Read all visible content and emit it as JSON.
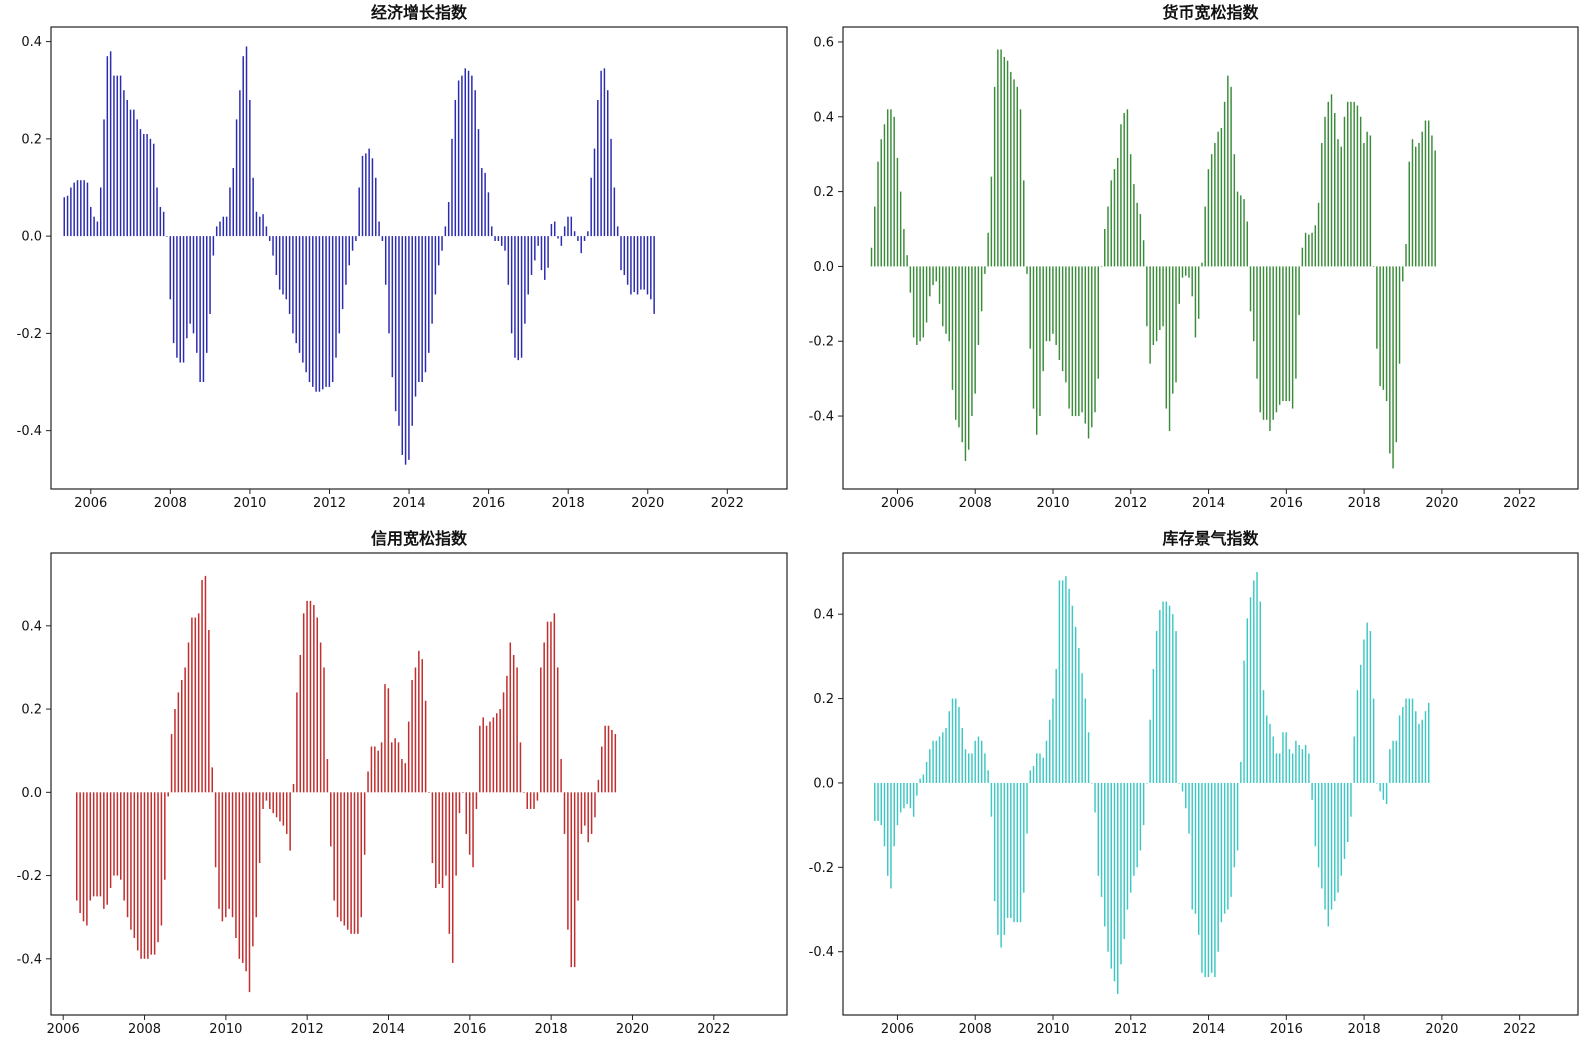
{
  "chart_data": [
    {
      "type": "bar",
      "title": "经济增长指数",
      "color": "#2c2cb0",
      "xlim": [
        2005.0,
        2023.5
      ],
      "ylim": [
        -0.52,
        0.43
      ],
      "xticks": [
        "2006",
        "2008",
        "2010",
        "2012",
        "2014",
        "2016",
        "2018",
        "2020",
        "2022"
      ],
      "yticks": [
        "0.4",
        "0.2",
        "0.0",
        "-0.2",
        "-0.4"
      ],
      "x_start": 2005.333,
      "x_step": 0.0833,
      "values": [
        0.08,
        0.083,
        0.1,
        0.11,
        0.115,
        0.115,
        0.115,
        0.11,
        0.06,
        0.04,
        0.03,
        0.1,
        0.24,
        0.37,
        0.38,
        0.33,
        0.33,
        0.33,
        0.3,
        0.28,
        0.26,
        0.26,
        0.24,
        0.22,
        0.21,
        0.21,
        0.2,
        0.19,
        0.1,
        0.06,
        0.05,
        0.0,
        -0.13,
        -0.22,
        -0.25,
        -0.26,
        -0.26,
        -0.21,
        -0.18,
        -0.2,
        -0.24,
        -0.3,
        -0.3,
        -0.24,
        -0.16,
        -0.04,
        0.02,
        0.03,
        0.04,
        0.04,
        0.1,
        0.14,
        0.24,
        0.3,
        0.37,
        0.39,
        0.28,
        0.12,
        0.05,
        0.04,
        0.045,
        0.02,
        -0.01,
        -0.04,
        -0.08,
        -0.11,
        -0.12,
        -0.13,
        -0.16,
        -0.2,
        -0.22,
        -0.24,
        -0.26,
        -0.28,
        -0.3,
        -0.31,
        -0.32,
        -0.32,
        -0.315,
        -0.31,
        -0.31,
        -0.3,
        -0.25,
        -0.2,
        -0.15,
        -0.1,
        -0.06,
        -0.03,
        -0.01,
        0.1,
        0.165,
        0.17,
        0.18,
        0.16,
        0.12,
        0.03,
        -0.01,
        -0.1,
        -0.2,
        -0.29,
        -0.36,
        -0.39,
        -0.45,
        -0.47,
        -0.46,
        -0.39,
        -0.33,
        -0.3,
        -0.3,
        -0.28,
        -0.24,
        -0.18,
        -0.12,
        -0.06,
        -0.03,
        0.02,
        0.07,
        0.2,
        0.28,
        0.32,
        0.33,
        0.345,
        0.34,
        0.33,
        0.3,
        0.22,
        0.14,
        0.13,
        0.09,
        0.02,
        -0.01,
        -0.01,
        -0.02,
        -0.03,
        -0.1,
        -0.2,
        -0.25,
        -0.255,
        -0.25,
        -0.18,
        -0.12,
        -0.08,
        -0.05,
        -0.02,
        -0.07,
        -0.09,
        -0.065,
        0.025,
        0.03,
        -0.005,
        -0.02,
        0.02,
        0.04,
        0.04,
        0.01,
        -0.01,
        -0.035,
        -0.01,
        0.01,
        0.12,
        0.18,
        0.28,
        0.34,
        0.345,
        0.3,
        0.2,
        0.1,
        0.02,
        -0.07,
        -0.08,
        -0.1,
        -0.12,
        -0.115,
        -0.12,
        -0.11,
        -0.11,
        -0.12,
        -0.13,
        -0.16
      ]
    },
    {
      "type": "bar",
      "title": "货币宽松指数",
      "color": "#3a8c3a",
      "xlim": [
        2004.6,
        2023.5
      ],
      "ylim": [
        -0.595,
        0.64
      ],
      "xticks": [
        "2006",
        "2008",
        "2010",
        "2012",
        "2014",
        "2016",
        "2018",
        "2020",
        "2022"
      ],
      "yticks": [
        "0.6",
        "0.4",
        "0.2",
        "0.0",
        "-0.2",
        "-0.4"
      ],
      "x_start": 2005.333,
      "x_step": 0.0833,
      "values": [
        0.05,
        0.16,
        0.28,
        0.34,
        0.38,
        0.42,
        0.42,
        0.4,
        0.29,
        0.2,
        0.1,
        0.03,
        -0.07,
        -0.19,
        -0.21,
        -0.2,
        -0.19,
        -0.15,
        -0.08,
        -0.05,
        -0.04,
        -0.1,
        -0.16,
        -0.18,
        -0.2,
        -0.33,
        -0.41,
        -0.43,
        -0.47,
        -0.52,
        -0.49,
        -0.4,
        -0.34,
        -0.21,
        -0.12,
        -0.02,
        0.09,
        0.24,
        0.48,
        0.58,
        0.58,
        0.56,
        0.55,
        0.52,
        0.5,
        0.48,
        0.42,
        0.23,
        -0.02,
        -0.22,
        -0.38,
        -0.45,
        -0.4,
        -0.28,
        -0.2,
        -0.2,
        -0.18,
        -0.21,
        -0.25,
        -0.28,
        -0.31,
        -0.38,
        -0.4,
        -0.4,
        -0.4,
        -0.39,
        -0.42,
        -0.46,
        -0.43,
        -0.39,
        -0.3,
        0.0,
        0.1,
        0.16,
        0.23,
        0.26,
        0.29,
        0.38,
        0.41,
        0.42,
        0.3,
        0.22,
        0.17,
        0.14,
        0.07,
        -0.16,
        -0.26,
        -0.21,
        -0.2,
        -0.17,
        -0.16,
        -0.38,
        -0.44,
        -0.34,
        -0.31,
        -0.1,
        -0.03,
        -0.025,
        -0.03,
        -0.08,
        -0.19,
        -0.14,
        0.01,
        0.16,
        0.26,
        0.3,
        0.33,
        0.36,
        0.37,
        0.44,
        0.51,
        0.48,
        0.3,
        0.2,
        0.19,
        0.18,
        0.12,
        -0.12,
        -0.2,
        -0.3,
        -0.39,
        -0.41,
        -0.41,
        -0.44,
        -0.41,
        -0.39,
        -0.37,
        -0.36,
        -0.36,
        -0.36,
        -0.38,
        -0.3,
        -0.13,
        0.05,
        0.09,
        0.085,
        0.09,
        0.11,
        0.17,
        0.33,
        0.4,
        0.44,
        0.46,
        0.41,
        0.34,
        0.32,
        0.4,
        0.44,
        0.44,
        0.44,
        0.43,
        0.4,
        0.33,
        0.36,
        0.35,
        0.0,
        -0.22,
        -0.32,
        -0.33,
        -0.36,
        -0.5,
        -0.54,
        -0.47,
        -0.26,
        -0.04,
        0.06,
        0.28,
        0.34,
        0.32,
        0.33,
        0.36,
        0.39,
        0.39,
        0.35,
        0.31
      ]
    },
    {
      "type": "bar",
      "title": "信用宽松指数",
      "color": "#c03030",
      "xlim": [
        2005.7,
        2023.8
      ],
      "ylim": [
        -0.535,
        0.575
      ],
      "xticks": [
        "2006",
        "2008",
        "2010",
        "2012",
        "2014",
        "2016",
        "2018",
        "2020",
        "2022"
      ],
      "yticks": [
        "0.4",
        "0.2",
        "0.0",
        "-0.2",
        "-0.4"
      ],
      "x_start": 2006.333,
      "x_step": 0.0833,
      "values": [
        -0.26,
        -0.29,
        -0.31,
        -0.32,
        -0.26,
        -0.25,
        -0.25,
        -0.25,
        -0.28,
        -0.27,
        -0.23,
        -0.2,
        -0.2,
        -0.21,
        -0.26,
        -0.3,
        -0.33,
        -0.35,
        -0.38,
        -0.4,
        -0.4,
        -0.4,
        -0.39,
        -0.39,
        -0.36,
        -0.32,
        -0.21,
        -0.01,
        0.14,
        0.2,
        0.24,
        0.27,
        0.3,
        0.36,
        0.42,
        0.42,
        0.43,
        0.51,
        0.52,
        0.39,
        0.06,
        -0.18,
        -0.28,
        -0.31,
        -0.3,
        -0.28,
        -0.3,
        -0.35,
        -0.4,
        -0.41,
        -0.43,
        -0.48,
        -0.37,
        -0.3,
        -0.17,
        -0.04,
        -0.02,
        -0.04,
        -0.05,
        -0.06,
        -0.07,
        -0.08,
        -0.1,
        -0.14,
        0.02,
        0.24,
        0.33,
        0.43,
        0.46,
        0.46,
        0.45,
        0.42,
        0.36,
        0.3,
        0.08,
        -0.13,
        -0.26,
        -0.3,
        -0.31,
        -0.32,
        -0.33,
        -0.34,
        -0.34,
        -0.34,
        -0.3,
        -0.15,
        0.05,
        0.11,
        0.11,
        0.1,
        0.12,
        0.26,
        0.25,
        0.12,
        0.13,
        0.12,
        0.08,
        0.07,
        0.17,
        0.27,
        0.3,
        0.34,
        0.32,
        0.22,
        0.0,
        -0.17,
        -0.23,
        -0.22,
        -0.23,
        -0.2,
        -0.34,
        -0.41,
        -0.2,
        -0.05,
        0.0,
        -0.1,
        -0.15,
        -0.18,
        -0.04,
        0.16,
        0.18,
        0.16,
        0.17,
        0.18,
        0.19,
        0.2,
        0.24,
        0.28,
        0.36,
        0.33,
        0.3,
        0.12,
        0.0,
        -0.04,
        -0.04,
        -0.04,
        -0.02,
        0.3,
        0.36,
        0.41,
        0.41,
        0.43,
        0.3,
        0.08,
        -0.1,
        -0.33,
        -0.42,
        -0.42,
        -0.26,
        -0.1,
        -0.08,
        -0.12,
        -0.1,
        -0.06,
        0.03,
        0.11,
        0.16,
        0.16,
        0.15,
        0.14
      ]
    },
    {
      "type": "bar",
      "title": "库存景气指数",
      "color": "#3ec8c4",
      "xlim": [
        2004.6,
        2023.5
      ],
      "ylim": [
        -0.55,
        0.545
      ],
      "xticks": [
        "2006",
        "2008",
        "2010",
        "2012",
        "2014",
        "2016",
        "2018",
        "2020",
        "2022"
      ],
      "yticks": [
        "0.4",
        "0.2",
        "0.0",
        "-0.2",
        "-0.4"
      ],
      "x_start": 2005.417,
      "x_step": 0.0833,
      "values": [
        -0.09,
        -0.09,
        -0.1,
        -0.15,
        -0.22,
        -0.25,
        -0.15,
        -0.1,
        -0.07,
        -0.06,
        -0.05,
        -0.06,
        -0.08,
        -0.03,
        0.01,
        0.02,
        0.05,
        0.08,
        0.1,
        0.1,
        0.11,
        0.12,
        0.13,
        0.17,
        0.2,
        0.2,
        0.18,
        0.13,
        0.08,
        0.07,
        0.07,
        0.1,
        0.11,
        0.1,
        0.07,
        0.03,
        -0.08,
        -0.28,
        -0.36,
        -0.39,
        -0.36,
        -0.32,
        -0.32,
        -0.33,
        -0.33,
        -0.33,
        -0.26,
        -0.12,
        0.03,
        0.04,
        0.07,
        0.07,
        0.06,
        0.1,
        0.15,
        0.2,
        0.27,
        0.48,
        0.48,
        0.49,
        0.46,
        0.42,
        0.37,
        0.32,
        0.26,
        0.2,
        0.12,
        0.0,
        -0.07,
        -0.22,
        -0.27,
        -0.34,
        -0.4,
        -0.44,
        -0.47,
        -0.5,
        -0.43,
        -0.37,
        -0.3,
        -0.26,
        -0.22,
        -0.2,
        -0.16,
        -0.1,
        0.0,
        0.15,
        0.27,
        0.36,
        0.41,
        0.43,
        0.43,
        0.42,
        0.4,
        0.36,
        0.0,
        -0.02,
        -0.06,
        -0.12,
        -0.3,
        -0.31,
        -0.36,
        -0.45,
        -0.46,
        -0.46,
        -0.45,
        -0.46,
        -0.4,
        -0.33,
        -0.31,
        -0.3,
        -0.27,
        -0.2,
        -0.16,
        0.05,
        0.29,
        0.39,
        0.44,
        0.48,
        0.5,
        0.43,
        0.22,
        0.16,
        0.14,
        0.11,
        0.07,
        0.07,
        0.12,
        0.12,
        0.08,
        0.07,
        0.1,
        0.09,
        0.08,
        0.09,
        0.07,
        -0.04,
        -0.15,
        -0.2,
        -0.25,
        -0.3,
        -0.34,
        -0.3,
        -0.28,
        -0.26,
        -0.22,
        -0.18,
        -0.14,
        -0.08,
        0.11,
        0.22,
        0.28,
        0.34,
        0.38,
        0.36,
        0.2,
        0.0,
        -0.02,
        -0.04,
        -0.05,
        0.08,
        0.1,
        0.1,
        0.16,
        0.18,
        0.2,
        0.2,
        0.2,
        0.17,
        0.14,
        0.15,
        0.17,
        0.19
      ]
    }
  ]
}
